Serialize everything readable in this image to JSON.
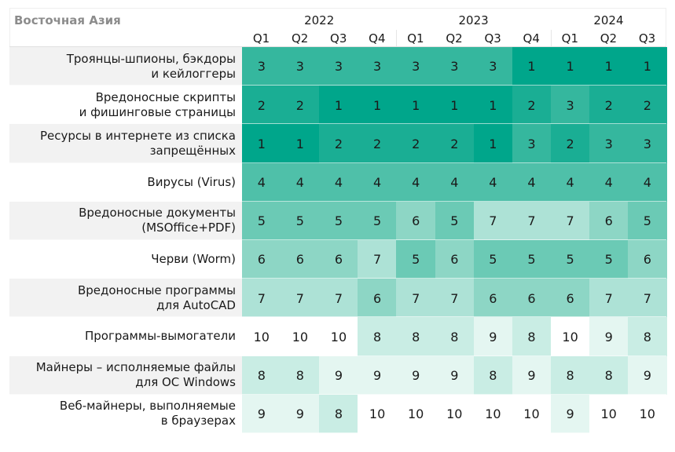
{
  "chart_data": {
    "type": "heatmap",
    "title": "Восточная Азия",
    "x": [
      "Q1",
      "Q2",
      "Q3",
      "Q4",
      "Q1",
      "Q2",
      "Q3",
      "Q4",
      "Q1",
      "Q2",
      "Q3"
    ],
    "x_groups": [
      "2022",
      null,
      null,
      null,
      "2023",
      null,
      null,
      null,
      "2024",
      null,
      null
    ],
    "colors": [
      "#00a68b",
      "#1aae94",
      "#35b79e",
      "#4fc0a9",
      "#6bcab5",
      "#8dd6c5",
      "#ade2d6",
      "#c9ede4",
      "#e4f6f1",
      "#ffffff"
    ],
    "series": [
      {
        "name": "Троянцы-шпионы, бэкдоры\nи кейлоггеры",
        "values": [
          3,
          3,
          3,
          3,
          3,
          3,
          3,
          1,
          1,
          1,
          1
        ]
      },
      {
        "name": "Вредоносные скрипты\nи фишинговые страницы",
        "values": [
          2,
          2,
          1,
          1,
          1,
          1,
          1,
          2,
          3,
          2,
          2
        ]
      },
      {
        "name": "Ресурсы в интернете из списка\nзапрещённых",
        "values": [
          1,
          1,
          2,
          2,
          2,
          2,
          1,
          3,
          2,
          3,
          3
        ]
      },
      {
        "name": "Вирусы (Virus)",
        "values": [
          4,
          4,
          4,
          4,
          4,
          4,
          4,
          4,
          4,
          4,
          4
        ]
      },
      {
        "name": "Вредоносные документы\n(MSOffice+PDF)",
        "values": [
          5,
          5,
          5,
          5,
          6,
          5,
          7,
          7,
          7,
          6,
          5
        ]
      },
      {
        "name": "Черви (Worm)",
        "values": [
          6,
          6,
          6,
          7,
          5,
          6,
          5,
          5,
          5,
          5,
          6
        ]
      },
      {
        "name": "Вредоносные программы\nдля AutoCAD",
        "values": [
          7,
          7,
          7,
          6,
          7,
          7,
          6,
          6,
          6,
          7,
          7
        ]
      },
      {
        "name": "Программы-вымогатели",
        "values": [
          10,
          10,
          10,
          8,
          8,
          8,
          9,
          8,
          10,
          9,
          8
        ]
      },
      {
        "name": "Майнеры – исполняемые файлы\nдля ОС Windows",
        "values": [
          8,
          8,
          9,
          9,
          9,
          9,
          8,
          9,
          8,
          8,
          9
        ]
      },
      {
        "name": "Веб-майнеры, выполняемые\nв браузерах",
        "values": [
          9,
          9,
          8,
          10,
          10,
          10,
          10,
          10,
          9,
          10,
          10
        ]
      }
    ]
  }
}
